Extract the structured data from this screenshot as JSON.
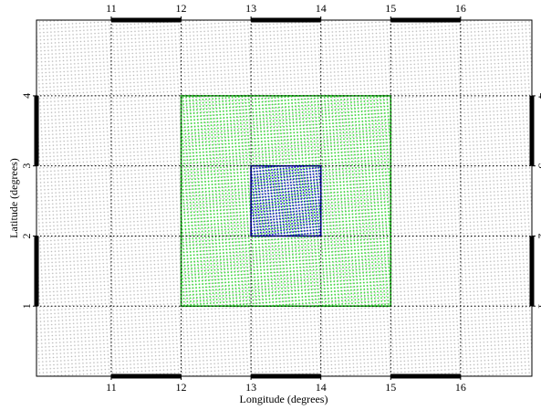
{
  "chart_data": {
    "type": "map",
    "xlabel": "Longitude (degrees)",
    "ylabel": "Latitude (degrees)",
    "xlim": [
      9.93,
      17.02
    ],
    "ylim": [
      0,
      5.08
    ],
    "xticks": [
      11,
      12,
      13,
      14,
      15,
      16
    ],
    "yticks": [
      1,
      2,
      3,
      4
    ],
    "grid": true,
    "regions": [
      {
        "color": "#1aaa1a",
        "lon": [
          12,
          15
        ],
        "lat": [
          1,
          4
        ]
      },
      {
        "color": "#000099",
        "lon": [
          13,
          14
        ],
        "lat": [
          2,
          3
        ]
      }
    ]
  }
}
